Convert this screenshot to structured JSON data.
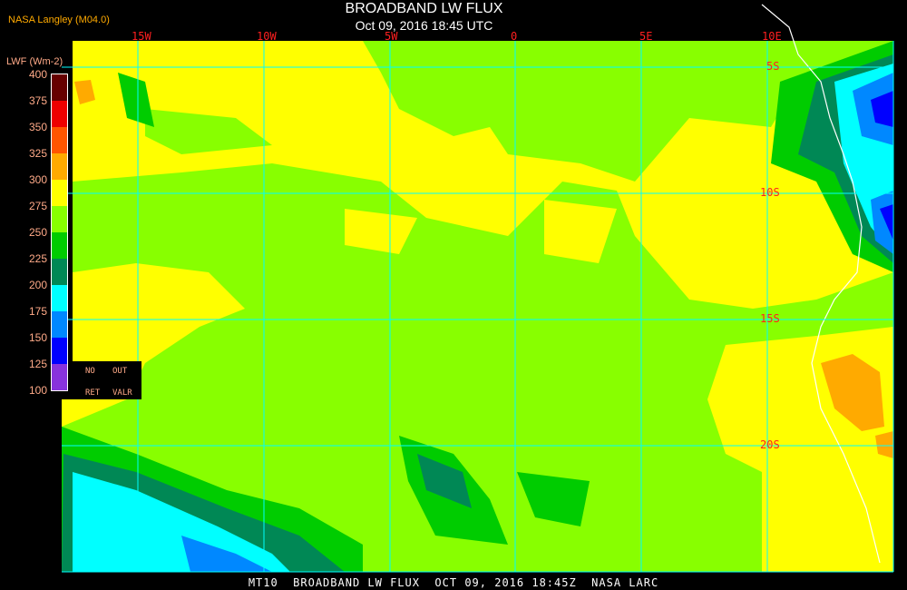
{
  "header": {
    "title": "BROADBAND LW FLUX",
    "subtitle": "Oct 09, 2016 18:45 UTC",
    "credit": "NASA Langley (M04.0)"
  },
  "map": {
    "longitude_labels": [
      "15W",
      "10W",
      "5W",
      "0",
      "5E",
      "10E"
    ],
    "latitude_labels": [
      "5S",
      "10S",
      "15S",
      "20S"
    ],
    "grid_color": "#00ffff",
    "coastline_color": "#ffffff"
  },
  "legend": {
    "unit": "LWF (Wm-2)",
    "ticks": [
      "400",
      "375",
      "350",
      "325",
      "300",
      "275",
      "250",
      "225",
      "200",
      "175",
      "150",
      "125",
      "100"
    ],
    "colors": [
      "#660000",
      "#ee0000",
      "#ff5500",
      "#ffaa00",
      "#ffff00",
      "#88ff00",
      "#00cc00",
      "#008855",
      "#00ffff",
      "#0088ff",
      "#0000ff",
      "#8833dd"
    ],
    "no_ret": {
      "no": "NO",
      "ret": "RET",
      "out": "OUT",
      "valr": "VALR"
    }
  },
  "footer": {
    "text": "MT10  BROADBAND LW FLUX  OCT 09, 2016 18:45Z  NASA LARC"
  }
}
